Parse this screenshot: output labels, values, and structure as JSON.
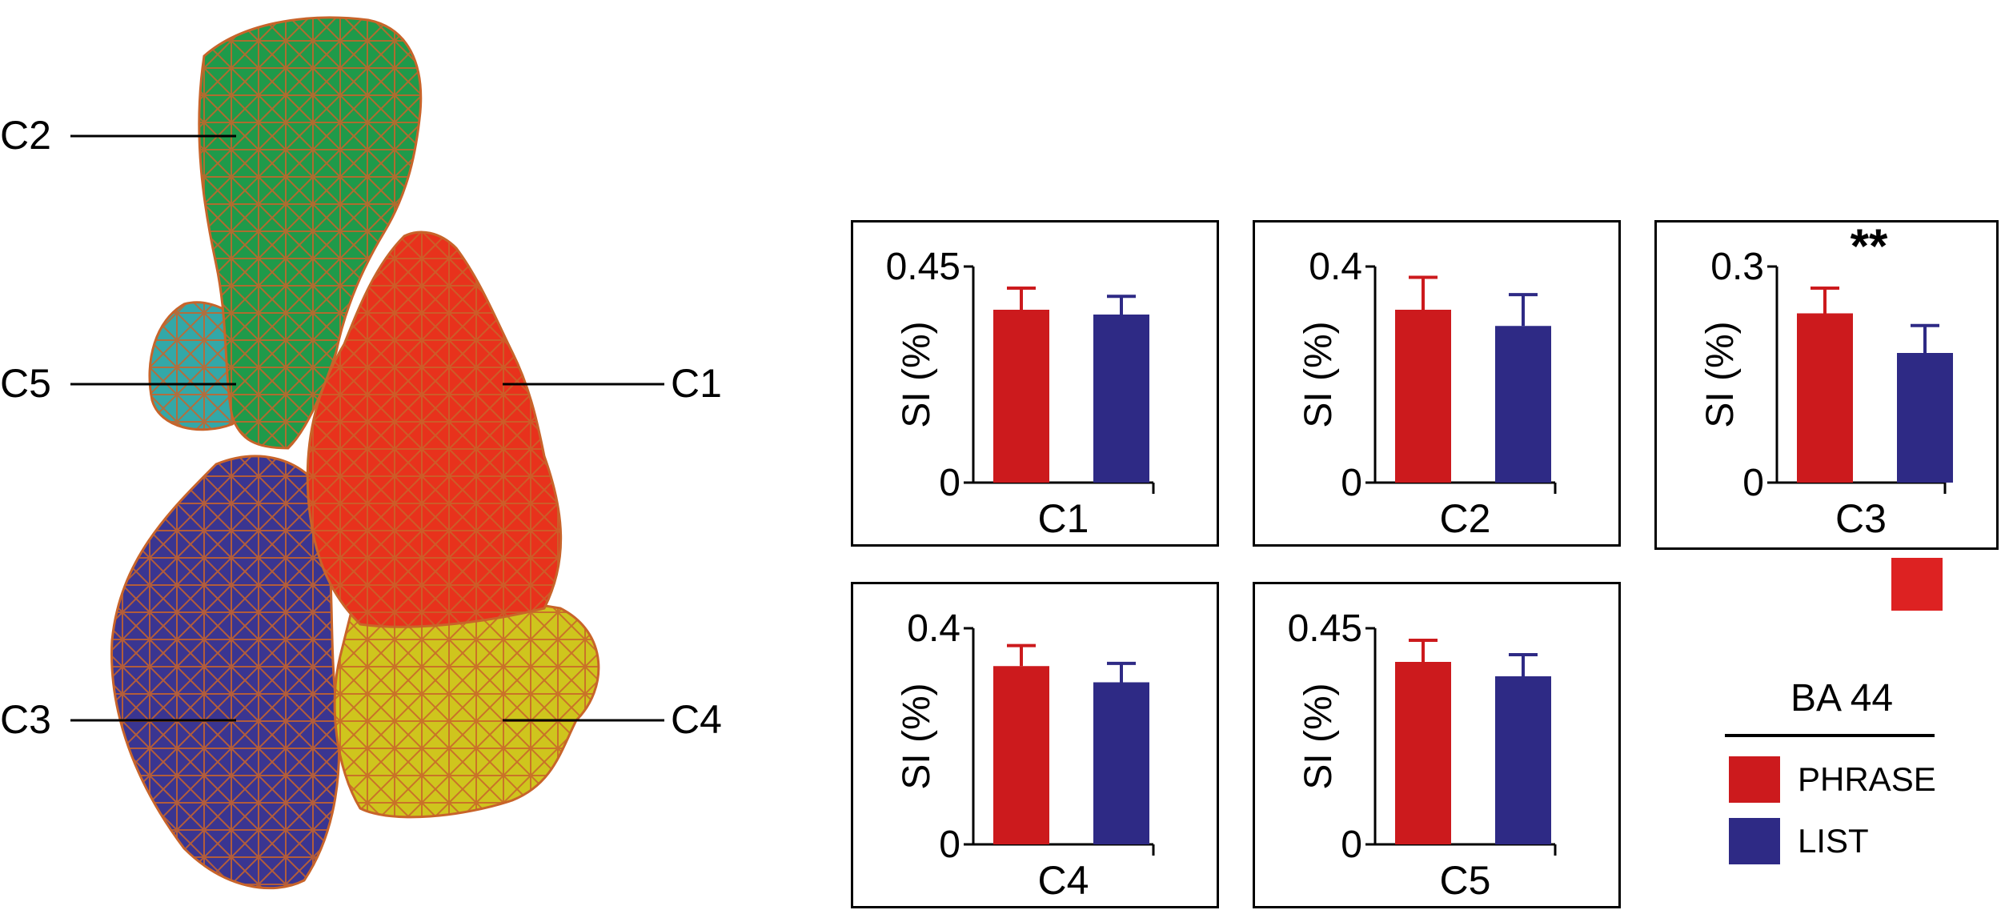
{
  "brain": {
    "labels": [
      "C2",
      "C5",
      "C1",
      "C3",
      "C4"
    ],
    "colors": {
      "C1": "#e8321c",
      "C2": "#1f9a4a",
      "C3": "#3a3591",
      "C4": "#cfc51d",
      "C5": "#33a8a8",
      "mesh": "#c8642a"
    }
  },
  "legend": {
    "title": "BA 44",
    "items": [
      {
        "label": "PHRASE",
        "color": "#cc1a1d"
      },
      {
        "label": "LIST",
        "color": "#2e2a85"
      }
    ],
    "extra_swatch_color": "#dd2222"
  },
  "chart_data": [
    {
      "type": "bar",
      "panel": "C1",
      "xlabel": "C1",
      "ylabel": "SI (%)",
      "ylim": [
        0,
        0.45
      ],
      "yticks": [
        "0",
        "0.45"
      ],
      "annotation": "",
      "categories": [
        "PHRASE",
        "LIST"
      ],
      "values": [
        0.36,
        0.35
      ],
      "errors": [
        0.045,
        0.038
      ],
      "colors": [
        "#cc1a1d",
        "#2e2a85"
      ]
    },
    {
      "type": "bar",
      "panel": "C2",
      "xlabel": "C2",
      "ylabel": "SI (%)",
      "ylim": [
        0,
        0.4
      ],
      "yticks": [
        "0",
        "0.4"
      ],
      "annotation": "",
      "categories": [
        "PHRASE",
        "LIST"
      ],
      "values": [
        0.32,
        0.29
      ],
      "errors": [
        0.06,
        0.058
      ],
      "colors": [
        "#cc1a1d",
        "#2e2a85"
      ]
    },
    {
      "type": "bar",
      "panel": "C3",
      "xlabel": "C3",
      "ylabel": "SI (%)",
      "ylim": [
        0,
        0.3
      ],
      "yticks": [
        "0",
        "0.3"
      ],
      "annotation": "**",
      "categories": [
        "PHRASE",
        "LIST"
      ],
      "values": [
        0.235,
        0.18
      ],
      "errors": [
        0.035,
        0.038
      ],
      "colors": [
        "#cc1a1d",
        "#2e2a85"
      ]
    },
    {
      "type": "bar",
      "panel": "C4",
      "xlabel": "C4",
      "ylabel": "SI (%)",
      "ylim": [
        0,
        0.4
      ],
      "yticks": [
        "0",
        "0.4"
      ],
      "annotation": "",
      "categories": [
        "PHRASE",
        "LIST"
      ],
      "values": [
        0.33,
        0.3
      ],
      "errors": [
        0.038,
        0.035
      ],
      "colors": [
        "#cc1a1d",
        "#2e2a85"
      ]
    },
    {
      "type": "bar",
      "panel": "C5",
      "xlabel": "C5",
      "ylabel": "SI (%)",
      "ylim": [
        0,
        0.45
      ],
      "yticks": [
        "0",
        "0.45"
      ],
      "annotation": "",
      "categories": [
        "PHRASE",
        "LIST"
      ],
      "values": [
        0.38,
        0.35
      ],
      "errors": [
        0.045,
        0.045
      ],
      "colors": [
        "#cc1a1d",
        "#2e2a85"
      ]
    }
  ]
}
